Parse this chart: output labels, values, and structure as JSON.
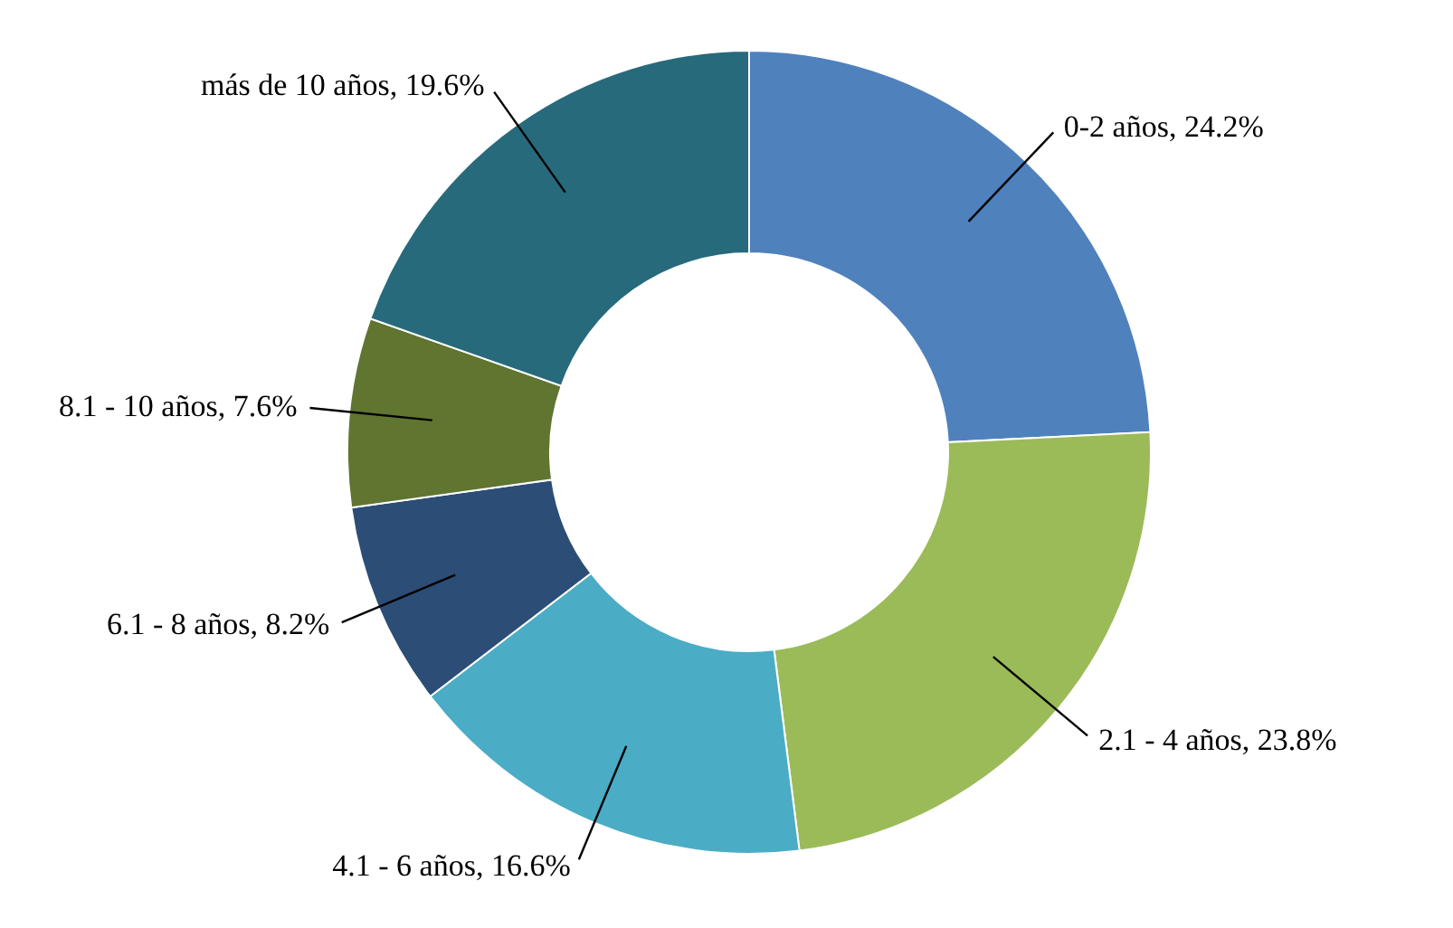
{
  "chart_data": {
    "type": "donut",
    "categories": [
      "0-2 años",
      "2.1 - 4 años",
      "4.1 - 6 años",
      "6.1 - 8 años",
      "8.1 - 10 años",
      "más de 10 años"
    ],
    "values": [
      24.2,
      23.8,
      16.6,
      8.2,
      7.6,
      19.6
    ],
    "value_labels": [
      "24.2%",
      "23.8%",
      "16.6%",
      "8.2%",
      "7.6%",
      "19.6%"
    ],
    "colors": [
      "#4f81bd",
      "#9bbb59",
      "#4bacc6",
      "#2c4d75",
      "#5f7530",
      "#276a7c"
    ]
  }
}
